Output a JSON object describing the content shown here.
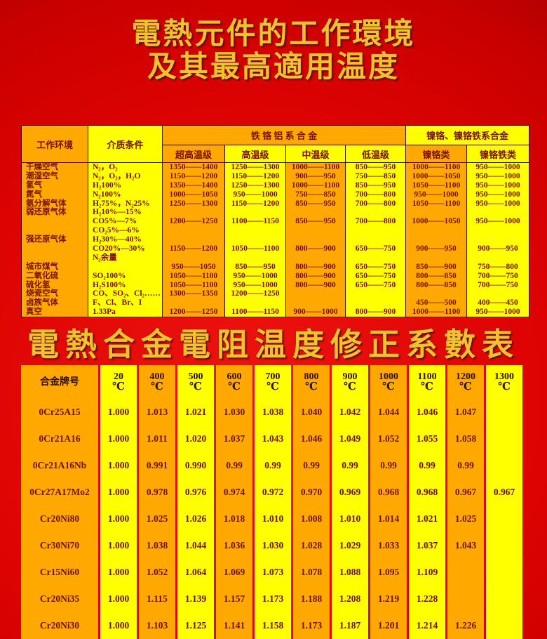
{
  "page": {
    "title_line1": "電熱元件的工作環境",
    "title_line2": "及其最高適用温度",
    "section2_title": "電熱合金電阻温度修正系數表"
  },
  "colors": {
    "accent_orange": "#FFA800",
    "accent_yellow": "#FFFF00",
    "background_red": "#DD0302",
    "table_text_dark_red": "#7A1000",
    "title_yellow": "#EEC32E"
  },
  "table1": {
    "header": {
      "col_env": "工作环境",
      "col_medium": "介质条件",
      "group_fecral": "铁 铬 铝 系 合 金",
      "group_nicr": "镍铬、镍铬铁系合金",
      "sub_columns": [
        "超高温级",
        "高温级",
        "中温级",
        "低温级",
        "镍铬类",
        "镍铬铁类"
      ]
    },
    "lines": [
      [
        "干燥空气",
        "N₂，O₂",
        "1350——1400",
        "1250——1300",
        "1000——1100",
        "850——950",
        "1000——1100",
        "950——1000"
      ],
      [
        "潮湿空气",
        "N₂，O₂，H₂O",
        "1150——1200",
        "1150——1200",
        "900——950",
        "750——850",
        "1000——1050",
        "950——1000"
      ],
      [
        "氢气",
        "H₂100%",
        "1350——1400",
        "1250——1300",
        "1000——1100",
        "850——950",
        "1050——1100",
        "950——1000"
      ],
      [
        "氮气",
        "N₂100%",
        "1000——1050",
        "950——1000",
        "750——850",
        "700——800",
        "950——1000",
        "950——1000"
      ],
      [
        "氨分解气体",
        "H₂75%，N₂25%",
        "1250——1300",
        "1150——1200",
        "850——950",
        "700——800",
        "1050——1100",
        "950——1000"
      ],
      [
        "弱还原气体",
        "H₂10%—15%",
        "",
        "",
        "",
        "",
        "",
        ""
      ],
      [
        "",
        "CO5%—7%",
        "1200——1250",
        "1100——1150",
        "850——950",
        "700——800",
        "1000——1050",
        "950——1000"
      ],
      [
        "",
        "CO₂5%—6%",
        "",
        "",
        "",
        "",
        "",
        ""
      ],
      [
        "强还原气体",
        "H₂30%—40%",
        "",
        "",
        "",
        "",
        "",
        ""
      ],
      [
        "",
        "CO20%—30%",
        "1150——1200",
        "1050——1100",
        "800——900",
        "650——750",
        "900——950",
        "900——950"
      ],
      [
        "",
        "N₂余量",
        "",
        "",
        "",
        "",
        "",
        ""
      ],
      [
        "城市煤气",
        "",
        "950——1050",
        "850——950",
        "800——900",
        "650——750",
        "850——900",
        "750——800"
      ],
      [
        "二氧化硫",
        "SO₂100%",
        "1050——1100",
        "950——1000",
        "800——900",
        "650——750",
        "800——850",
        "700——750"
      ],
      [
        "硫化氢",
        "H₂S100%",
        "1050——1100",
        "950——1000",
        "800——900",
        "650——750",
        "800——850",
        "700——750"
      ],
      [
        "烧瓷空气",
        "CO、SO₂、Cl₂……",
        "1300——1350",
        "1200——1250",
        "",
        "",
        "",
        ""
      ],
      [
        "卤族气体",
        "F、Cl、Br、I",
        "",
        "",
        "",
        "",
        "450——500",
        "400——450"
      ],
      [
        "真空",
        "1.33Pa",
        "1200——1250",
        "1100——1150",
        "900——1000",
        "800——900",
        "1000——1100",
        "950——1000"
      ]
    ]
  },
  "table2": {
    "header_name": "合金牌号",
    "temp_unit": "℃",
    "temp_columns": [
      "20",
      "400",
      "500",
      "600",
      "700",
      "800",
      "900",
      "1000",
      "1100",
      "1200",
      "1300"
    ],
    "rows": [
      {
        "grade": "0Cr25A15",
        "values": [
          "1.000",
          "1.013",
          "1.021",
          "1.030",
          "1.038",
          "1.040",
          "1.042",
          "1.044",
          "1.046",
          "1.047",
          ""
        ]
      },
      {
        "grade": "0Cr21A16",
        "values": [
          "1.000",
          "1.011",
          "1.020",
          "1.037",
          "1.043",
          "1.046",
          "1.049",
          "1.052",
          "1.055",
          "1.058",
          ""
        ]
      },
      {
        "grade": "0Cr21A16Nb",
        "values": [
          "1.000",
          "0.991",
          "0.990",
          "0.99",
          "0.99",
          "0.99",
          "0.99",
          "0.99",
          "0.99",
          "0.99",
          ""
        ]
      },
      {
        "grade": "0Cr27A17Mo2",
        "values": [
          "1.000",
          "0.978",
          "0.976",
          "0.974",
          "0.972",
          "0.970",
          "0.969",
          "0.968",
          "0.968",
          "0.967",
          "0.967"
        ]
      },
      {
        "grade": "Cr20Ni80",
        "values": [
          "1.000",
          "1.025",
          "1.026",
          "1.018",
          "1.010",
          "1.008",
          "1.010",
          "1.014",
          "1.021",
          "1.025",
          ""
        ]
      },
      {
        "grade": "Cr30Ni70",
        "values": [
          "1.000",
          "1.038",
          "1.044",
          "1.036",
          "1.030",
          "1.028",
          "1.029",
          "1.033",
          "1.037",
          "1.043",
          ""
        ]
      },
      {
        "grade": "Cr15Ni60",
        "values": [
          "1.000",
          "1.052",
          "1.064",
          "1.069",
          "1.073",
          "1.078",
          "1.088",
          "1.095",
          "1.109",
          "",
          ""
        ]
      },
      {
        "grade": "Cr20Ni35",
        "values": [
          "1.000",
          "1.115",
          "1.139",
          "1.157",
          "1.173",
          "1.188",
          "1.208",
          "1.219",
          "1.228",
          "",
          ""
        ]
      },
      {
        "grade": "Cr20Ni30",
        "values": [
          "1.000",
          "1.103",
          "1.125",
          "1.141",
          "1.158",
          "1.173",
          "1.187",
          "1.201",
          "1.214",
          "1.226",
          ""
        ]
      }
    ]
  }
}
